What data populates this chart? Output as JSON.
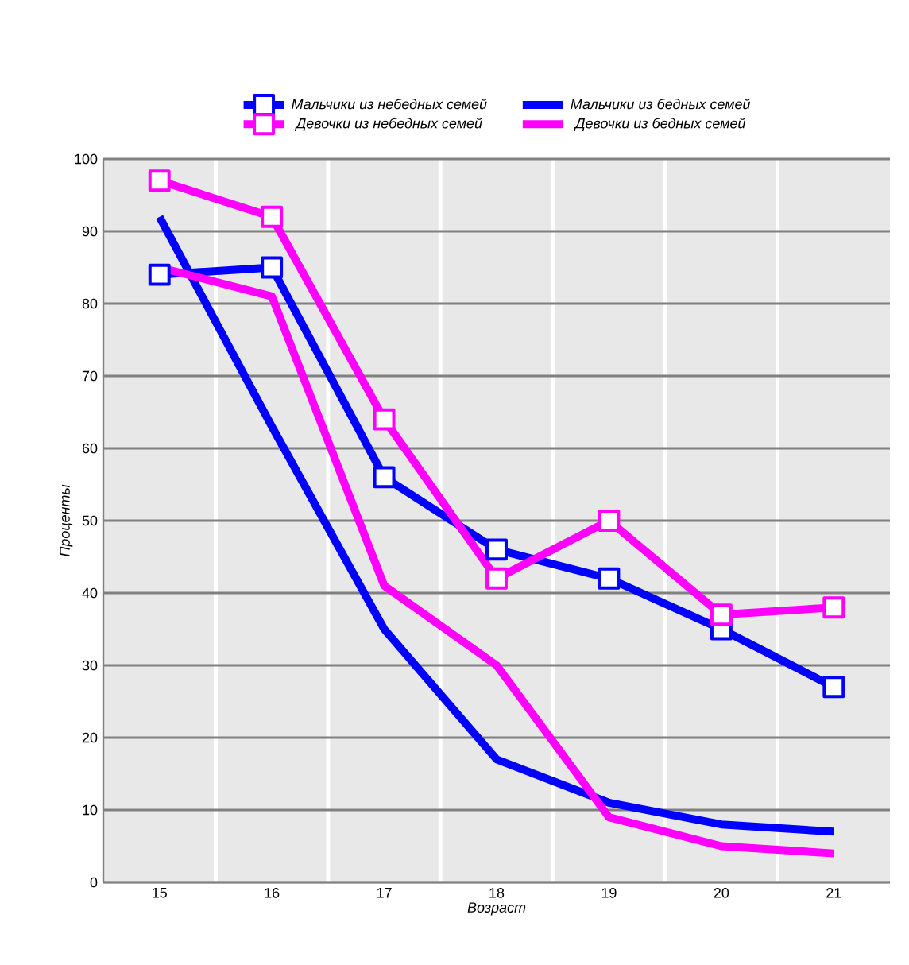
{
  "chart_data": {
    "type": "line",
    "xlabel": "Возраст",
    "ylabel": "Проценты",
    "categories": [
      "15",
      "16",
      "17",
      "18",
      "19",
      "20",
      "21"
    ],
    "series": [
      {
        "name": "Мальчики из небедных семей",
        "color": "#0000ff",
        "marker": "square",
        "values": [
          84,
          85,
          56,
          46,
          42,
          35,
          27
        ]
      },
      {
        "name": "Мальчики из бедных семей",
        "color": "#0000ff",
        "marker": "none",
        "values": [
          92,
          63,
          35,
          17,
          11,
          8,
          7
        ]
      },
      {
        "name": "Девочки из небедных семей",
        "color": "#ff00ff",
        "marker": "square",
        "values": [
          97,
          92,
          64,
          42,
          50,
          37,
          38
        ]
      },
      {
        "name": "Девочки из бедных семей",
        "color": "#ff00ff",
        "marker": "none",
        "values": [
          85,
          81,
          41,
          30,
          9,
          5,
          4
        ]
      }
    ],
    "ylim": [
      0,
      100
    ],
    "yticks": [
      0,
      10,
      20,
      30,
      40,
      50,
      60,
      70,
      80,
      90,
      100
    ],
    "grid": "y",
    "legend": "top",
    "line_style": "solid"
  }
}
